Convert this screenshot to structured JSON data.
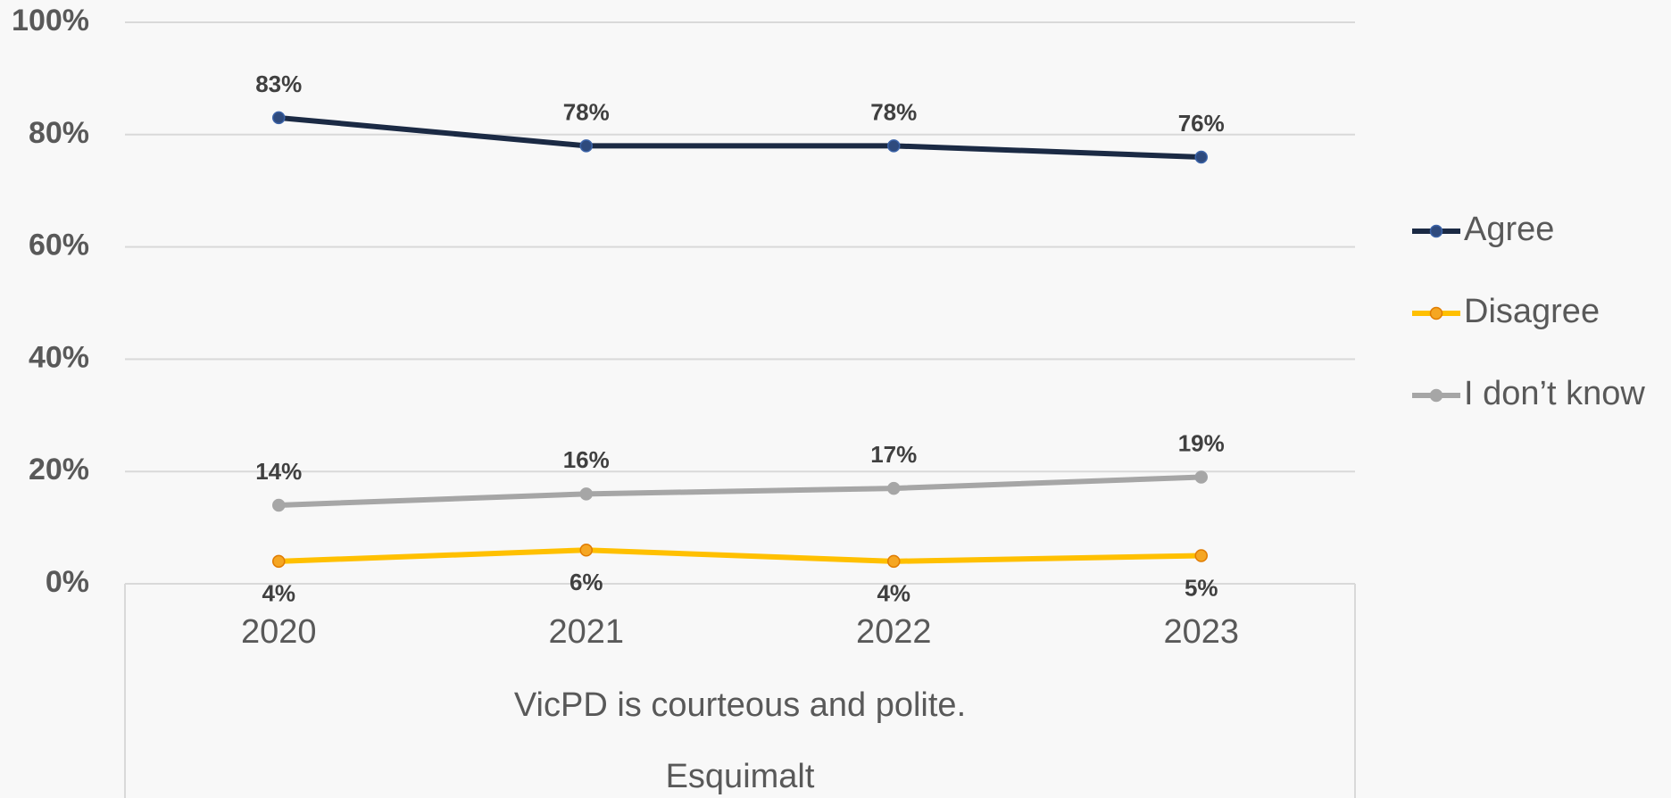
{
  "chart_data": {
    "type": "line",
    "categories": [
      "2020",
      "2021",
      "2022",
      "2023"
    ],
    "category_group_labels": [
      "VicPD is courteous and polite.",
      "Esquimalt"
    ],
    "series": [
      {
        "name": "Agree",
        "color": "#1b2a44",
        "marker_color": "#2e4a7d",
        "label_position": "above",
        "values": [
          83,
          78,
          78,
          76
        ],
        "value_labels": [
          "83%",
          "78%",
          "78%",
          "76%"
        ]
      },
      {
        "name": "Disagree",
        "color": "#ffc000",
        "marker_color": "#f5a623",
        "label_position": "below",
        "values": [
          4,
          6,
          4,
          5
        ],
        "value_labels": [
          "4%",
          "6%",
          "4%",
          "5%"
        ]
      },
      {
        "name": "I don’t know",
        "color": "#a6a6a6",
        "marker_color": "#a6a6a6",
        "label_position": "above",
        "values": [
          14,
          16,
          17,
          19
        ],
        "value_labels": [
          "14%",
          "16%",
          "17%",
          "19%"
        ]
      }
    ],
    "ylim": [
      0,
      100
    ],
    "yticks": [
      {
        "value": 0,
        "label": "0%"
      },
      {
        "value": 20,
        "label": "20%"
      },
      {
        "value": 40,
        "label": "40%"
      },
      {
        "value": 60,
        "label": "60%"
      },
      {
        "value": 80,
        "label": "80%"
      },
      {
        "value": 100,
        "label": "100%"
      }
    ],
    "grid": true,
    "legend": "right"
  }
}
